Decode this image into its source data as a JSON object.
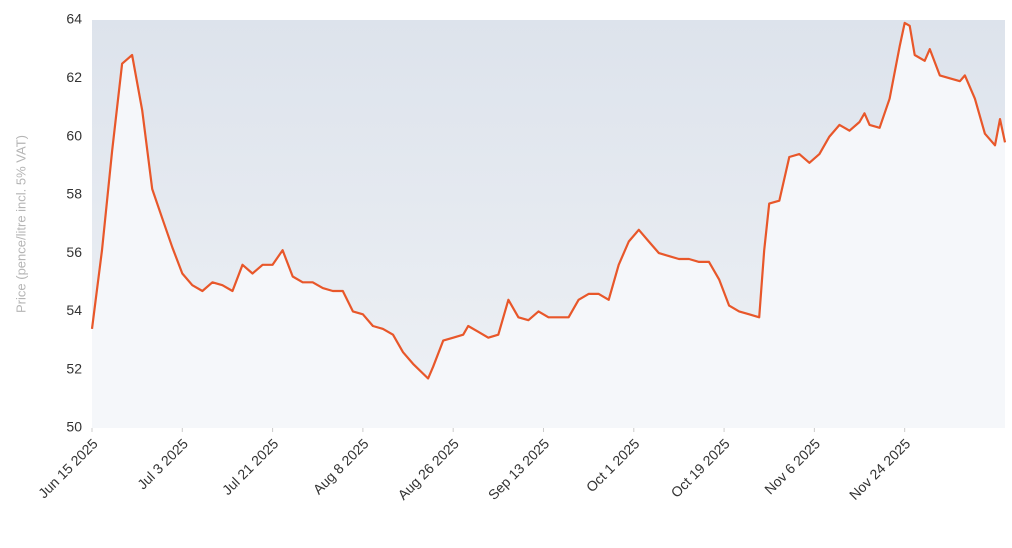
{
  "chart_data": {
    "type": "line",
    "y_label": "Price (pence/litre incl. 5% VAT)",
    "x": [
      "2025-06-15",
      "2025-06-17",
      "2025-06-19",
      "2025-06-21",
      "2025-06-23",
      "2025-06-25",
      "2025-06-27",
      "2025-06-29",
      "2025-07-01",
      "2025-07-03",
      "2025-07-05",
      "2025-07-07",
      "2025-07-09",
      "2025-07-11",
      "2025-07-13",
      "2025-07-15",
      "2025-07-17",
      "2025-07-19",
      "2025-07-21",
      "2025-07-23",
      "2025-07-25",
      "2025-07-27",
      "2025-07-29",
      "2025-07-31",
      "2025-08-02",
      "2025-08-04",
      "2025-08-06",
      "2025-08-08",
      "2025-08-10",
      "2025-08-12",
      "2025-08-14",
      "2025-08-16",
      "2025-08-18",
      "2025-08-21",
      "2025-08-22",
      "2025-08-24",
      "2025-08-26",
      "2025-08-28",
      "2025-08-29",
      "2025-08-31",
      "2025-09-02",
      "2025-09-04",
      "2025-09-06",
      "2025-09-08",
      "2025-09-10",
      "2025-09-12",
      "2025-09-14",
      "2025-09-16",
      "2025-09-18",
      "2025-09-20",
      "2025-09-22",
      "2025-09-24",
      "2025-09-26",
      "2025-09-28",
      "2025-09-30",
      "2025-10-02",
      "2025-10-04",
      "2025-10-06",
      "2025-10-08",
      "2025-10-10",
      "2025-10-12",
      "2025-10-14",
      "2025-10-16",
      "2025-10-18",
      "2025-10-20",
      "2025-10-22",
      "2025-10-24",
      "2025-10-26",
      "2025-10-27",
      "2025-10-28",
      "2025-10-30",
      "2025-11-01",
      "2025-11-03",
      "2025-11-05",
      "2025-11-07",
      "2025-11-09",
      "2025-11-11",
      "2025-11-13",
      "2025-11-15",
      "2025-11-16",
      "2025-11-17",
      "2025-11-19",
      "2025-11-21",
      "2025-11-23",
      "2025-11-24",
      "2025-11-25",
      "2025-11-26",
      "2025-11-28",
      "2025-11-29",
      "2025-12-01",
      "2025-12-03",
      "2025-12-05",
      "2025-12-06",
      "2025-12-08",
      "2025-12-10",
      "2025-12-12",
      "2025-12-13",
      "2025-12-14"
    ],
    "series": [
      {
        "color": "#e8572a",
        "values": [
          53.4,
          56.1,
          59.5,
          62.5,
          62.8,
          60.9,
          58.2,
          57.2,
          56.2,
          55.3,
          54.9,
          54.7,
          55.0,
          54.9,
          54.7,
          55.6,
          55.3,
          55.6,
          55.6,
          56.1,
          55.2,
          55.0,
          55.0,
          54.8,
          54.7,
          54.7,
          54.0,
          53.9,
          53.5,
          53.4,
          53.2,
          52.6,
          52.2,
          51.7,
          52.1,
          53.0,
          53.1,
          53.2,
          53.5,
          53.3,
          53.1,
          53.2,
          54.4,
          53.8,
          53.7,
          54.0,
          53.8,
          53.8,
          53.8,
          54.4,
          54.6,
          54.6,
          54.4,
          55.6,
          56.4,
          56.8,
          56.4,
          56.0,
          55.9,
          55.8,
          55.8,
          55.7,
          55.7,
          55.1,
          54.2,
          54.0,
          53.9,
          53.8,
          56.1,
          57.7,
          57.8,
          59.3,
          59.4,
          59.1,
          59.4,
          60.0,
          60.4,
          60.2,
          60.5,
          60.8,
          60.4,
          60.3,
          61.3,
          63.1,
          63.9,
          63.8,
          62.8,
          62.6,
          63.0,
          62.1,
          62.0,
          61.9,
          62.1,
          61.3,
          60.1,
          59.7,
          60.6,
          59.8
        ]
      }
    ],
    "xlim": [
      "2025-06-15",
      "2025-12-14"
    ],
    "xticks": [
      {
        "value": "2025-06-15",
        "label": "Jun 15 2025"
      },
      {
        "value": "2025-07-03",
        "label": "Jul 3 2025"
      },
      {
        "value": "2025-07-21",
        "label": "Jul 21 2025"
      },
      {
        "value": "2025-08-08",
        "label": "Aug 8 2025"
      },
      {
        "value": "2025-08-26",
        "label": "Aug 26 2025"
      },
      {
        "value": "2025-09-13",
        "label": "Sep 13 2025"
      },
      {
        "value": "2025-10-01",
        "label": "Oct 1 2025"
      },
      {
        "value": "2025-10-19",
        "label": "Oct 19 2025"
      },
      {
        "value": "2025-11-06",
        "label": "Nov 6 2025"
      },
      {
        "value": "2025-11-24",
        "label": "Nov 24 2025"
      }
    ],
    "ylim": [
      50,
      64
    ],
    "yticks": [
      50,
      52,
      54,
      56,
      58,
      60,
      62,
      64
    ]
  }
}
